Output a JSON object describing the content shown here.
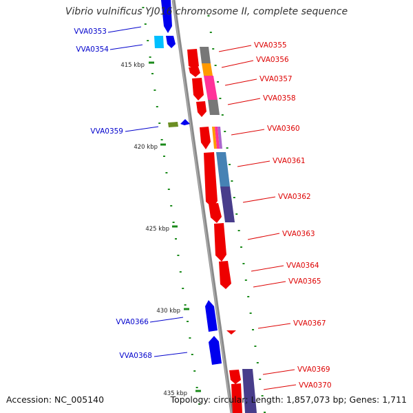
{
  "title": "Vibrio vulnificus YJ016 chromosome II, complete sequence",
  "footer": {
    "accession": "Accession: NC_005140",
    "summary": "Topology: circular; Length: 1,857,073 bp; Genes: 1,711"
  },
  "ticks": [
    "415 kbp",
    "420 kbp",
    "425 kbp",
    "430 kbp",
    "435 kbp"
  ],
  "left_labels": [
    "VVA0353",
    "VVA0354",
    "VVA0359",
    "VVA0366",
    "VVA0368"
  ],
  "right_labels": [
    "VVA0355",
    "VVA0356",
    "VVA0357",
    "VVA0358",
    "VVA0360",
    "VVA0361",
    "VVA0362",
    "VVA0363",
    "VVA0364",
    "VVA0365",
    "VVA0367",
    "VVA0369",
    "VVA0370"
  ],
  "colors": {
    "forward_gene": "#0000ee",
    "reverse_gene": "#ee0000",
    "forward_label": "#0000cc",
    "reverse_label": "#dd0000",
    "backbone": "#8a8a8a",
    "tick_mark": "#1a8a1a",
    "cog_gray": "#777777",
    "cog_orange": "#ff9900",
    "cog_pink": "#ff3399",
    "cog_steelblue": "#4682b4",
    "cog_slate": "#483d8b",
    "cog_cyan": "#00bfff",
    "cog_olive": "#6b8e23"
  }
}
